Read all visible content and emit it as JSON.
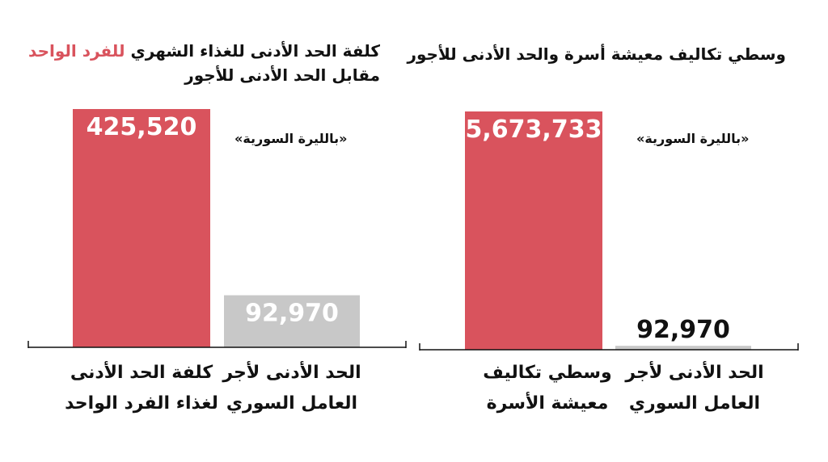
{
  "chart_data": [
    {
      "type": "bar",
      "title_main": "كلفة الحد الأدنى للغذاء الشهري ",
      "title_highlight": "للفرد الواحد",
      "title_line2": "مقابل الحد الأدنى للأجور",
      "unit": "«بالليرة السورية»",
      "categories": [
        "كلفة الحد الأدنى لغذاء الفرد الواحد",
        "الحد الأدنى لأجر العامل السوري"
      ],
      "values": [
        425520,
        92970
      ],
      "value_labels": [
        "425,520",
        "92,970"
      ],
      "colors": [
        "#d9535d",
        "#c8c8c8"
      ],
      "ylim": [
        0,
        425520
      ]
    },
    {
      "type": "bar",
      "title_main": "وسطي تكاليف معيشة أسرة والحد الأدنى للأجور",
      "unit": "«بالليرة السورية»",
      "categories": [
        "وسطي تكاليف معيشة الأسرة",
        "الحد الأدنى لأجر العامل السوري"
      ],
      "values": [
        5673733,
        92970
      ],
      "value_labels": [
        "5,673,733",
        "92,970"
      ],
      "colors": [
        "#d9535d",
        "#c8c8c8"
      ],
      "ylim": [
        0,
        5673733
      ]
    }
  ]
}
